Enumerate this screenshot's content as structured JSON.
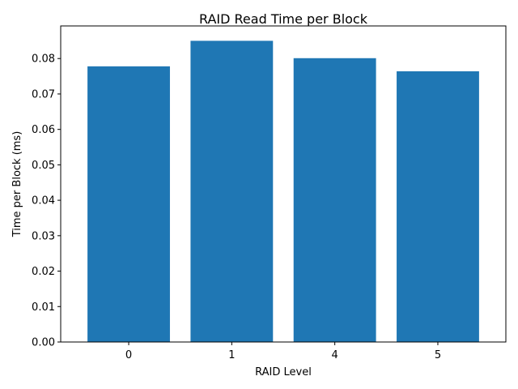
{
  "chart_data": {
    "type": "bar",
    "title": "RAID Read Time per Block",
    "xlabel": "RAID Level",
    "ylabel": "Time per Block (ms)",
    "categories": [
      "0",
      "1",
      "4",
      "5"
    ],
    "values": [
      0.0778,
      0.085,
      0.0801,
      0.0764
    ],
    "ylim": [
      0,
      0.0892
    ],
    "yticks": [
      0.0,
      0.01,
      0.02,
      0.03,
      0.04,
      0.05,
      0.06,
      0.07,
      0.08
    ],
    "ytick_labels": [
      "0.00",
      "0.01",
      "0.02",
      "0.03",
      "0.04",
      "0.05",
      "0.06",
      "0.07",
      "0.08"
    ],
    "grid": false,
    "legend": "none",
    "bar_color": "#1f77b4"
  }
}
